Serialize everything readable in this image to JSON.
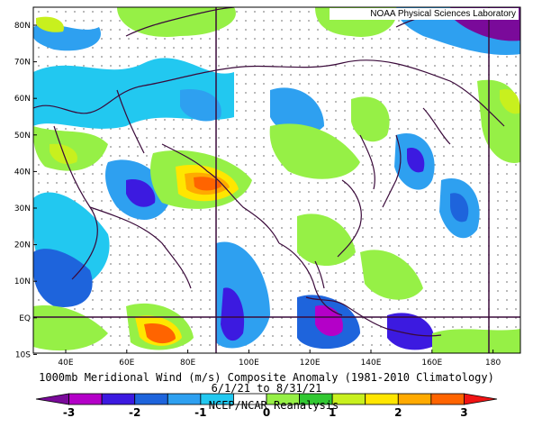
{
  "credit": "NOAA Physical Sciences Laboratory",
  "title_line1": "1000mb Meridional Wind (m/s) Composite Anomaly (1981-2010 Climatology)",
  "title_line2": "6/1/21 to 8/31/21",
  "source": "NCEP/NCAR Reanalysis",
  "lat_labels": [
    "80N",
    "70N",
    "60N",
    "50N",
    "40N",
    "30N",
    "20N",
    "10N",
    "EQ",
    "10S"
  ],
  "lon_labels": [
    "40E",
    "60E",
    "80E",
    "100E",
    "120E",
    "140E",
    "160E",
    "180"
  ],
  "colorbar": {
    "labels": [
      "-3",
      "-2",
      "-1",
      "0",
      "1",
      "2",
      "3"
    ],
    "colors": [
      "#7a0a9a",
      "#b400c8",
      "#3c1ae0",
      "#1e64dc",
      "#2ea0f0",
      "#22c8f0",
      "#ffffff",
      "#96f046",
      "#32c832",
      "#c8f01e",
      "#ffe600",
      "#ffaa00",
      "#ff6400",
      "#f01414"
    ]
  }
}
